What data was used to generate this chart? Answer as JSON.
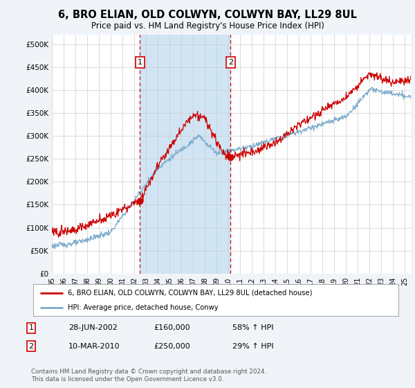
{
  "title": "6, BRO ELIAN, OLD COLWYN, COLWYN BAY, LL29 8UL",
  "subtitle": "Price paid vs. HM Land Registry's House Price Index (HPI)",
  "title_fontsize": 10.5,
  "subtitle_fontsize": 8.5,
  "bg_color": "#f0f4f8",
  "plot_bg_color": "#ffffff",
  "sale1_date_num": 2002.49,
  "sale1_price": 160000,
  "sale2_date_num": 2010.19,
  "sale2_price": 250000,
  "legend_line1": "6, BRO ELIAN, OLD COLWYN, COLWYN BAY, LL29 8UL (detached house)",
  "legend_line2": "HPI: Average price, detached house, Conwy",
  "table_row1": [
    "1",
    "28-JUN-2002",
    "£160,000",
    "58% ↑ HPI"
  ],
  "table_row2": [
    "2",
    "10-MAR-2010",
    "£250,000",
    "29% ↑ HPI"
  ],
  "footer": "Contains HM Land Registry data © Crown copyright and database right 2024.\nThis data is licensed under the Open Government Licence v3.0.",
  "red_color": "#cc0000",
  "blue_color": "#7aaacc",
  "shade_color": "#d0e4f4",
  "xmin": 1995,
  "xmax": 2025.5,
  "ymin": 0,
  "ymax": 520000,
  "yticks": [
    0,
    50000,
    100000,
    150000,
    200000,
    250000,
    300000,
    350000,
    400000,
    450000,
    500000
  ],
  "ylabels": [
    "£0",
    "£50K",
    "£100K",
    "£150K",
    "£200K",
    "£250K",
    "£300K",
    "£350K",
    "£400K",
    "£450K",
    "£500K"
  ]
}
